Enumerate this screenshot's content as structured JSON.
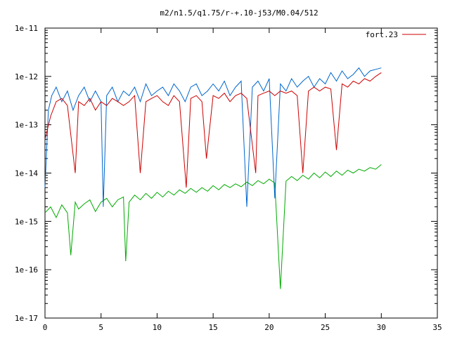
{
  "chart_data": {
    "type": "line",
    "title": "m2/n1.5/q1.75/r-+.10-j53/M0.04/512",
    "xlabel": "",
    "ylabel": "",
    "xlim": [
      0,
      35
    ],
    "ylim": [
      1e-17,
      1e-11
    ],
    "yscale": "log",
    "grid": false,
    "legend_position": "top-right",
    "x_ticks": [
      "0",
      "5",
      "10",
      "15",
      "20",
      "25",
      "30",
      "35"
    ],
    "y_ticks": [
      "1e-17",
      "1e-16",
      "1e-15",
      "1e-14",
      "1e-13",
      "1e-12",
      "1e-11"
    ],
    "legend": [
      "fort.23"
    ],
    "series": [
      {
        "name": "fort.23",
        "color": "#cc0000",
        "x": [
          0.0,
          0.5,
          1.0,
          1.5,
          2.0,
          2.7,
          3.0,
          3.5,
          4.0,
          4.5,
          5.0,
          5.5,
          6.0,
          6.5,
          7.0,
          7.5,
          8.0,
          8.5,
          9.0,
          9.5,
          10.0,
          10.5,
          11.0,
          11.5,
          12.0,
          12.6,
          13.0,
          13.5,
          14.0,
          14.4,
          15.0,
          15.5,
          16.0,
          16.5,
          17.0,
          17.5,
          18.0,
          18.8,
          19.0,
          19.5,
          20.0,
          20.5,
          21.0,
          21.5,
          22.0,
          22.5,
          23.0,
          23.5,
          24.0,
          24.5,
          25.0,
          25.5,
          26.0,
          26.5,
          27.0,
          27.5,
          28.0,
          28.5,
          29.0,
          29.5,
          30.0
        ],
        "y": [
          5e-14,
          1.5e-13,
          3e-13,
          3.5e-13,
          2.5e-13,
          1e-14,
          3e-13,
          2.5e-13,
          3.5e-13,
          2e-13,
          3e-13,
          2.5e-13,
          3.5e-13,
          3e-13,
          2.5e-13,
          3e-13,
          4e-13,
          1e-14,
          3e-13,
          3.5e-13,
          4e-13,
          3e-13,
          2.5e-13,
          4e-13,
          3e-13,
          5e-15,
          3.5e-13,
          4e-13,
          3e-13,
          2e-14,
          4e-13,
          3.5e-13,
          4.5e-13,
          3e-13,
          4e-13,
          4.5e-13,
          3.5e-13,
          1e-14,
          4e-13,
          4.5e-13,
          5e-13,
          4e-13,
          5e-13,
          4.5e-13,
          5e-13,
          4e-13,
          1e-14,
          5e-13,
          6e-13,
          5e-13,
          6e-13,
          5.5e-13,
          3e-14,
          7e-13,
          6e-13,
          8e-13,
          7e-13,
          9e-13,
          8e-13,
          1e-12,
          1.2e-12
        ]
      },
      {
        "color": "#0066cc",
        "x": [
          0.0,
          0.3,
          0.6,
          1.0,
          1.5,
          2.0,
          2.5,
          3.0,
          3.5,
          4.0,
          4.5,
          5.0,
          5.2,
          5.5,
          6.0,
          6.5,
          7.0,
          7.5,
          8.0,
          8.5,
          9.0,
          9.5,
          10.0,
          10.5,
          11.0,
          11.5,
          12.0,
          12.5,
          13.0,
          13.5,
          14.0,
          14.5,
          15.0,
          15.5,
          16.0,
          16.5,
          17.0,
          17.5,
          18.0,
          18.5,
          19.0,
          19.5,
          20.0,
          20.5,
          21.0,
          21.5,
          22.0,
          22.5,
          23.0,
          23.5,
          24.0,
          24.5,
          25.0,
          25.5,
          26.0,
          26.5,
          27.0,
          27.5,
          28.0,
          28.5,
          29.0,
          29.5,
          30.0
        ],
        "y": [
          5e-15,
          2e-13,
          4e-13,
          6e-13,
          3e-13,
          5e-13,
          2e-13,
          4e-13,
          6e-13,
          3e-13,
          5e-13,
          3e-13,
          2e-15,
          4e-13,
          6e-13,
          3e-13,
          5e-13,
          4e-13,
          6e-13,
          3e-13,
          7e-13,
          4e-13,
          5e-13,
          6e-13,
          4e-13,
          7e-13,
          5e-13,
          3e-13,
          6e-13,
          7e-13,
          4e-13,
          5e-13,
          7e-13,
          5e-13,
          8e-13,
          4e-13,
          6e-13,
          8e-13,
          2e-15,
          6e-13,
          8e-13,
          5e-13,
          9e-13,
          3e-15,
          7e-13,
          5e-13,
          9e-13,
          6e-13,
          8e-13,
          1e-12,
          6e-13,
          9e-13,
          7e-13,
          1.2e-12,
          8e-13,
          1.3e-12,
          9e-13,
          1.1e-12,
          1.5e-12,
          1e-12,
          1.3e-12,
          1.4e-12,
          1.5e-12
        ]
      },
      {
        "color": "#00aa00",
        "x": [
          0.0,
          0.5,
          1.0,
          1.5,
          2.0,
          2.3,
          2.7,
          3.0,
          3.5,
          4.0,
          4.5,
          5.0,
          5.5,
          6.0,
          6.5,
          7.0,
          7.2,
          7.5,
          8.0,
          8.5,
          9.0,
          9.5,
          10.0,
          10.5,
          11.0,
          11.5,
          12.0,
          12.5,
          13.0,
          13.5,
          14.0,
          14.5,
          15.0,
          15.5,
          16.0,
          16.5,
          17.0,
          17.5,
          18.0,
          18.5,
          19.0,
          19.5,
          20.0,
          20.5,
          21.0,
          21.5,
          22.0,
          22.5,
          23.0,
          23.5,
          24.0,
          24.5,
          25.0,
          25.5,
          26.0,
          26.5,
          27.0,
          27.5,
          28.0,
          28.5,
          29.0,
          29.5,
          30.0
        ],
        "y": [
          1.5e-15,
          2e-15,
          1.2e-15,
          2.2e-15,
          1.5e-15,
          2e-16,
          2.5e-15,
          1.8e-15,
          2.3e-15,
          2.8e-15,
          1.6e-15,
          2.5e-15,
          3e-15,
          2e-15,
          2.8e-15,
          3.2e-15,
          1.5e-16,
          2.5e-15,
          3.5e-15,
          2.8e-15,
          3.8e-15,
          3e-15,
          4e-15,
          3.2e-15,
          4.2e-15,
          3.5e-15,
          4.5e-15,
          3.8e-15,
          4.8e-15,
          4e-15,
          5e-15,
          4.2e-15,
          5.5e-15,
          4.5e-15,
          5.8e-15,
          5e-15,
          6e-15,
          5.2e-15,
          6.5e-15,
          5.5e-15,
          7e-15,
          6e-15,
          7.5e-15,
          6.2e-15,
          4e-17,
          6.8e-15,
          8.5e-15,
          7e-15,
          9e-15,
          7.5e-15,
          1e-14,
          8e-15,
          1.05e-14,
          8.5e-15,
          1.1e-14,
          9e-15,
          1.15e-14,
          1e-14,
          1.2e-14,
          1.1e-14,
          1.3e-14,
          1.2e-14,
          1.5e-14
        ]
      }
    ]
  }
}
